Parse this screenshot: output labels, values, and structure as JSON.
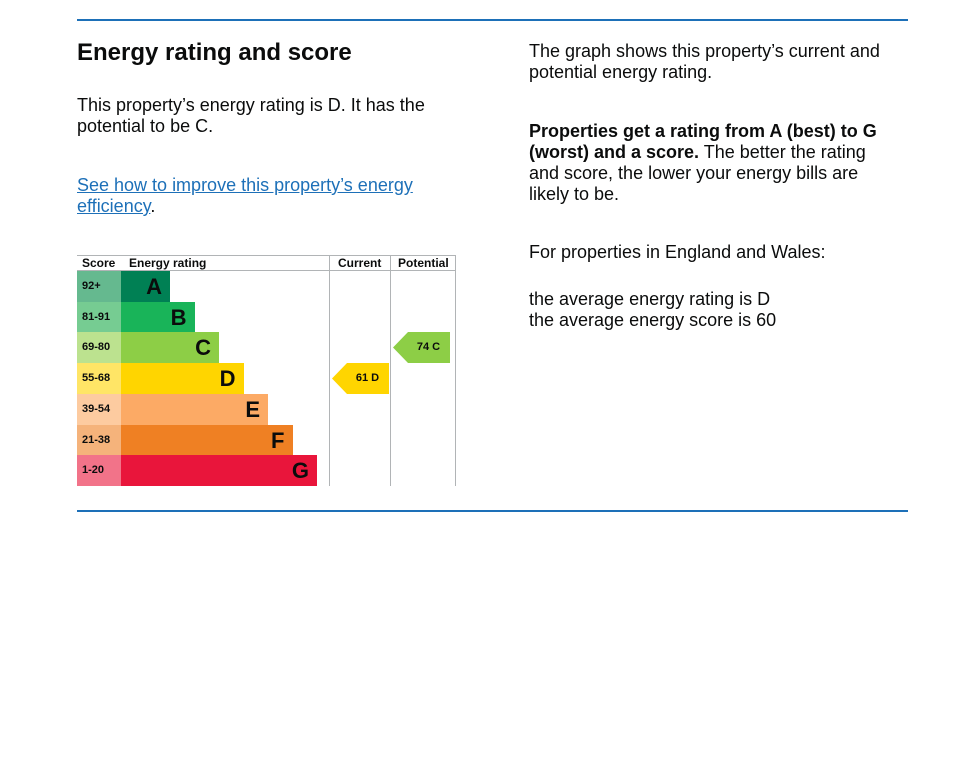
{
  "heading": "Energy rating and score",
  "summary": "This property’s energy rating is D. It has the potential to be C.",
  "improve_link": "See how to improve this property’s energy efficiency",
  "improve_link_suffix": ".",
  "right": {
    "p1": "The graph shows this property’s current and potential energy rating.",
    "p2_bold": "Properties get a rating from A (best) to G (worst) and a score.",
    "p2_rest": " The better the rating and score, the lower your energy bills are likely to be.",
    "p3": "For properties in England and Wales:",
    "p4_line1": "the average energy rating is D",
    "p4_line2": "the average energy score is 60"
  },
  "chart": {
    "headers": {
      "score": "Score",
      "rating": "Energy rating",
      "current": "Current",
      "potential": "Potential"
    },
    "bands": [
      {
        "score": "92+",
        "letter": "A",
        "color": "#008054",
        "score_bg": "#65b98f"
      },
      {
        "score": "81-91",
        "letter": "B",
        "color": "#19b459",
        "score_bg": "#76cc92"
      },
      {
        "score": "69-80",
        "letter": "C",
        "color": "#8dce46",
        "score_bg": "#bce28f"
      },
      {
        "score": "55-68",
        "letter": "D",
        "color": "#ffd500",
        "score_bg": "#ffe566"
      },
      {
        "score": "39-54",
        "letter": "E",
        "color": "#fcaa65",
        "score_bg": "#fdcba0"
      },
      {
        "score": "21-38",
        "letter": "F",
        "color": "#ef8023",
        "score_bg": "#f5b37b"
      },
      {
        "score": "1-20",
        "letter": "G",
        "color": "#e9153b",
        "score_bg": "#f27389"
      }
    ],
    "current": {
      "label": "61 D",
      "score": 61,
      "band": "D",
      "color": "#ffd500"
    },
    "potential": {
      "label": "74 C",
      "score": 74,
      "band": "C",
      "color": "#8dce46"
    }
  }
}
